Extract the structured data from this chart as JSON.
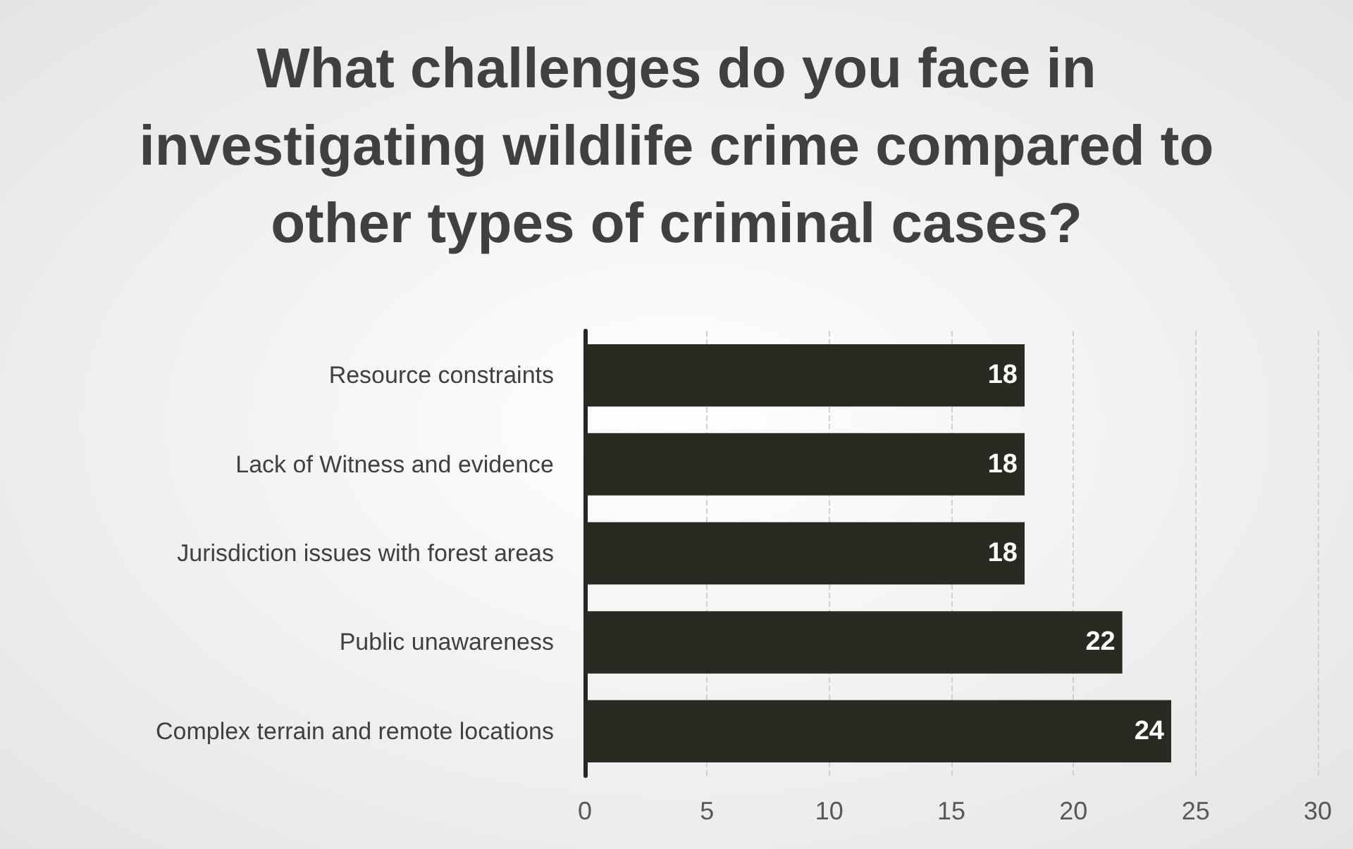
{
  "chart_data": {
    "type": "bar",
    "orientation": "horizontal",
    "title": "What challenges do you face in investigating wildlife crime compared to other types of criminal cases?",
    "categories": [
      "Resource constraints",
      "Lack of Witness and evidence",
      "Jurisdiction issues with forest areas",
      "Public unawareness",
      "Complex terrain and remote locations"
    ],
    "values": [
      18,
      18,
      18,
      22,
      24
    ],
    "color": "#2a2a22",
    "xlim": [
      0,
      30
    ],
    "xticks": [
      0,
      5,
      10,
      15,
      20,
      25,
      30
    ],
    "grid": "x",
    "data_labels": true
  }
}
